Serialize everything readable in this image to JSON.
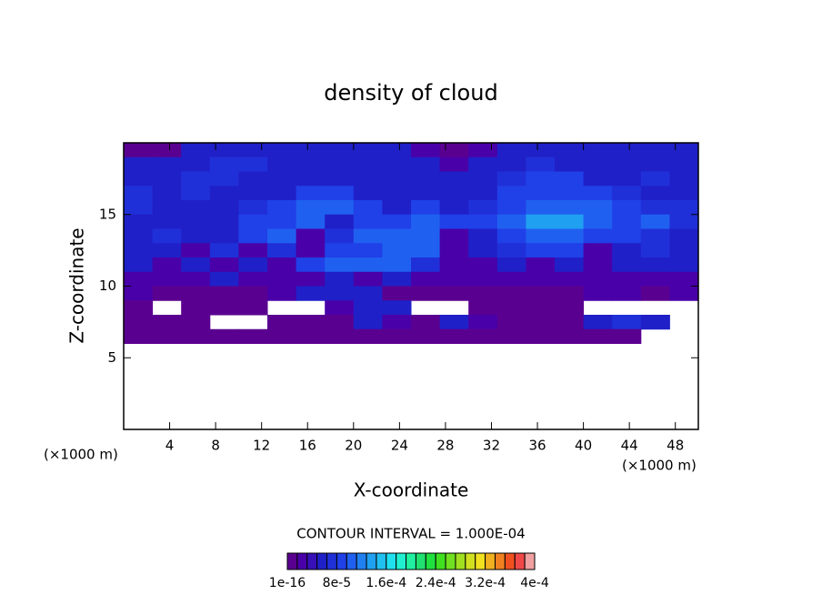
{
  "chart_data": {
    "type": "contour",
    "title": "density of cloud",
    "xlabel": "X-coordinate",
    "ylabel": "Z-coordinate",
    "xunit": "(×1000 m)",
    "yunit": "(×1000 m)",
    "note": "CONTOUR INTERVAL = 1.000E-04",
    "xlim": [
      0,
      50
    ],
    "ylim": [
      0,
      20
    ],
    "xticks": [
      4,
      8,
      12,
      16,
      20,
      24,
      28,
      32,
      36,
      40,
      44,
      48
    ],
    "yticks": [
      5,
      10,
      15
    ],
    "x": [
      1.25,
      3.75,
      6.25,
      8.75,
      11.25,
      13.75,
      16.25,
      18.75,
      21.25,
      23.75,
      26.25,
      28.75,
      31.25,
      33.75,
      36.25,
      38.75,
      41.25,
      43.75,
      46.25,
      48.75
    ],
    "y": [
      19.5,
      18.5,
      17.5,
      16.5,
      15.5,
      14.5,
      13.5,
      12.5,
      11.5,
      10.5,
      9.5,
      8.5,
      7.5,
      6.5
    ],
    "z": [
      [
        1e-05,
        1e-05,
        5e-05,
        5e-05,
        5e-05,
        5e-05,
        5e-05,
        5e-05,
        5e-05,
        5e-05,
        3e-05,
        1e-05,
        3e-05,
        5e-05,
        5e-05,
        5e-05,
        5e-05,
        5e-05,
        5e-05,
        5e-05
      ],
      [
        5e-05,
        5e-05,
        5e-05,
        7e-05,
        7e-05,
        5e-05,
        5e-05,
        5e-05,
        5e-05,
        5e-05,
        5e-05,
        3e-05,
        5e-05,
        5e-05,
        7e-05,
        5e-05,
        5e-05,
        5e-05,
        5e-05,
        5e-05
      ],
      [
        5e-05,
        5e-05,
        7e-05,
        7e-05,
        5e-05,
        5e-05,
        5e-05,
        5e-05,
        5e-05,
        5e-05,
        5e-05,
        5e-05,
        5e-05,
        7e-05,
        9e-05,
        9e-05,
        5e-05,
        5e-05,
        7e-05,
        5e-05
      ],
      [
        7e-05,
        5e-05,
        7e-05,
        5e-05,
        5e-05,
        5e-05,
        9e-05,
        9e-05,
        5e-05,
        5e-05,
        5e-05,
        5e-05,
        5e-05,
        9e-05,
        9e-05,
        9e-05,
        9e-05,
        7e-05,
        5e-05,
        5e-05
      ],
      [
        7e-05,
        5e-05,
        5e-05,
        5e-05,
        7e-05,
        9e-05,
        0.00011,
        0.00011,
        9e-05,
        5e-05,
        9e-05,
        5e-05,
        7e-05,
        9e-05,
        0.00011,
        0.00011,
        0.00011,
        9e-05,
        7e-05,
        7e-05
      ],
      [
        5e-05,
        5e-05,
        5e-05,
        5e-05,
        9e-05,
        9e-05,
        0.00011,
        5e-05,
        9e-05,
        9e-05,
        0.00011,
        9e-05,
        9e-05,
        0.00011,
        0.00013,
        0.00013,
        0.00011,
        9e-05,
        0.00011,
        7e-05
      ],
      [
        5e-05,
        7e-05,
        5e-05,
        5e-05,
        9e-05,
        0.00011,
        3e-05,
        7e-05,
        0.00011,
        0.00011,
        0.00011,
        3e-05,
        5e-05,
        9e-05,
        0.00011,
        0.00011,
        9e-05,
        9e-05,
        7e-05,
        5e-05
      ],
      [
        5e-05,
        5e-05,
        3e-05,
        7e-05,
        3e-05,
        7e-05,
        3e-05,
        9e-05,
        9e-05,
        0.00011,
        0.00011,
        3e-05,
        5e-05,
        7e-05,
        9e-05,
        9e-05,
        3e-05,
        5e-05,
        7e-05,
        5e-05
      ],
      [
        5e-05,
        3e-05,
        5e-05,
        3e-05,
        5e-05,
        3e-05,
        9e-05,
        0.00011,
        0.00011,
        0.00011,
        7e-05,
        3e-05,
        3e-05,
        5e-05,
        3e-05,
        5e-05,
        3e-05,
        5e-05,
        5e-05,
        5e-05
      ],
      [
        3e-05,
        3e-05,
        3e-05,
        5e-05,
        3e-05,
        3e-05,
        3e-05,
        5e-05,
        3e-05,
        5e-05,
        3e-05,
        3e-05,
        3e-05,
        3e-05,
        3e-05,
        3e-05,
        3e-05,
        3e-05,
        3e-05,
        3e-05
      ],
      [
        3e-05,
        1e-05,
        1e-05,
        1e-05,
        1e-05,
        3e-05,
        5e-05,
        5e-05,
        5e-05,
        1e-05,
        1e-05,
        1e-05,
        1e-05,
        1e-05,
        1e-05,
        1e-05,
        3e-05,
        3e-05,
        1e-05,
        3e-05
      ],
      [
        1e-05,
        null,
        1e-05,
        1e-05,
        1e-05,
        null,
        null,
        3e-05,
        5e-05,
        5e-05,
        null,
        null,
        1e-05,
        1e-05,
        1e-05,
        1e-05,
        null,
        null,
        null,
        null
      ],
      [
        1e-05,
        1e-05,
        1e-05,
        null,
        null,
        1e-05,
        1e-05,
        1e-05,
        5e-05,
        3e-05,
        1e-05,
        5e-05,
        3e-05,
        1e-05,
        1e-05,
        1e-05,
        5e-05,
        7e-05,
        5e-05,
        null
      ],
      [
        1e-05,
        1e-05,
        1e-05,
        1e-05,
        1e-05,
        1e-05,
        1e-05,
        1e-05,
        1e-05,
        1e-05,
        1e-05,
        1e-05,
        1e-05,
        1e-05,
        1e-05,
        1e-05,
        1e-05,
        1e-05,
        null,
        null
      ]
    ],
    "colorbar_range": [
      1e-16,
      0.0004
    ],
    "colorbar_ticks": [
      {
        "value": 1e-16,
        "label": "1e-16"
      },
      {
        "value": 8e-05,
        "label": "8e-5"
      },
      {
        "value": 0.00016,
        "label": "1.6e-4"
      },
      {
        "value": 0.00024,
        "label": "2.4e-4"
      },
      {
        "value": 0.00032,
        "label": "3.2e-4"
      },
      {
        "value": 0.0004,
        "label": "4e-4"
      }
    ],
    "colors": [
      "#5a0090",
      "#4a00a8",
      "#3810b8",
      "#2020c8",
      "#2030d8",
      "#2040e8",
      "#2060f0",
      "#2080f0",
      "#20a0f0",
      "#20c0f0",
      "#20e0f0",
      "#20f0d0",
      "#20f0a0",
      "#20e070",
      "#20e040",
      "#40e020",
      "#70e020",
      "#a0e020",
      "#d0e020",
      "#f0e020",
      "#f0b020",
      "#f08020",
      "#f05020",
      "#f04848",
      "#f0a0a0"
    ]
  }
}
